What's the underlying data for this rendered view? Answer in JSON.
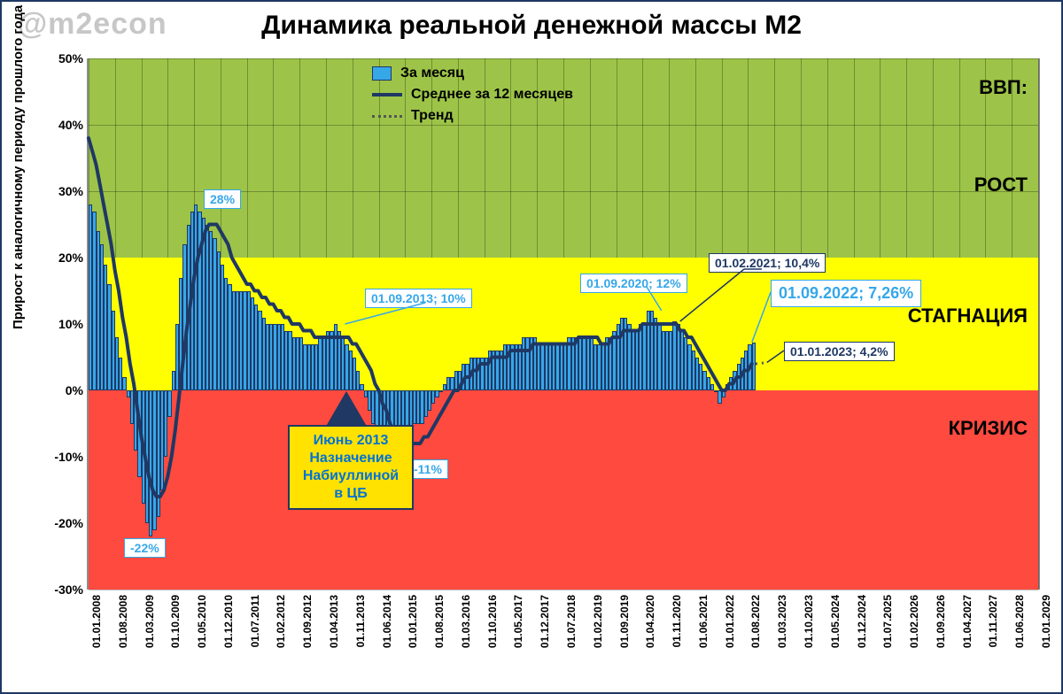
{
  "meta": {
    "watermark": "@m2econ",
    "title": "Динамика реальной денежной массы М2"
  },
  "axes": {
    "y": {
      "label": "Прирост к аналогичному периоду прошлого года",
      "min": -30,
      "max": 50,
      "step": 10,
      "tick_labels": [
        "-30%",
        "-20%",
        "-10%",
        "0%",
        "10%",
        "20%",
        "30%",
        "40%",
        "50%"
      ],
      "tick_fontsize": 14
    },
    "x": {
      "labels": [
        "01.01.2008",
        "01.08.2008",
        "01.03.2009",
        "01.10.2009",
        "01.05.2010",
        "01.12.2010",
        "01.07.2011",
        "01.02.2012",
        "01.09.2012",
        "01.04.2013",
        "01.11.2013",
        "01.06.2014",
        "01.01.2015",
        "01.08.2015",
        "01.03.2016",
        "01.10.2016",
        "01.05.2017",
        "01.12.2017",
        "01.07.2018",
        "01.02.2019",
        "01.09.2019",
        "01.04.2020",
        "01.11.2020",
        "01.06.2021",
        "01.01.2022",
        "01.08.2022",
        "01.03.2023",
        "01.10.2023",
        "01.05.2024",
        "01.12.2024",
        "01.07.2025",
        "01.02.2026",
        "01.09.2026",
        "01.04.2027",
        "01.11.2027",
        "01.06.2028",
        "01.01.2029"
      ],
      "tick_fontsize": 12
    }
  },
  "zones": {
    "green": {
      "color": "#9dc448",
      "from": 20,
      "to": 50
    },
    "yellow": {
      "color": "#ffff00",
      "from": 0,
      "to": 20
    },
    "red": {
      "color": "#ff4a3f",
      "from": -30,
      "to": 0
    },
    "labels": {
      "header": "ВВП:",
      "growth": "РОСТ",
      "stagnation": "СТАГНАЦИЯ",
      "crisis": "КРИЗИС"
    }
  },
  "legend": {
    "bar": "За месяц",
    "line": "Среднее за 12 месяцев",
    "trend": "Тренд"
  },
  "colors": {
    "bar_fill": "#36a7e9",
    "bar_border": "#1f3864",
    "line": "#1f3864",
    "trend": "#555555",
    "frame": "#1f3864",
    "grid": "rgba(0,0,0,0.28)"
  },
  "line_width": 4,
  "series": {
    "start_year": 2008.0,
    "end_year_axis": 2029.0,
    "last_bar_year": 2022.67,
    "monthly": [
      28,
      27,
      24,
      22,
      19,
      16,
      12,
      8,
      5,
      2,
      -1,
      -5,
      -9,
      -13,
      -17,
      -20,
      -22,
      -21,
      -19,
      -15,
      -10,
      -4,
      3,
      10,
      17,
      22,
      25,
      27,
      28,
      27,
      26,
      25,
      24,
      23,
      21,
      19,
      17,
      16,
      15,
      15,
      15,
      15,
      15,
      14,
      13,
      12,
      11,
      10,
      10,
      10,
      10,
      10,
      9,
      9,
      8,
      8,
      8,
      7,
      7,
      7,
      7,
      8,
      8,
      9,
      9,
      10,
      9,
      8,
      7,
      6,
      5,
      3,
      1,
      -1,
      -3,
      -5,
      -7,
      -9,
      -10,
      -11,
      -11,
      -10,
      -9,
      -8,
      -7,
      -6,
      -5,
      -5,
      -5,
      -4,
      -3,
      -2,
      -1,
      0,
      1,
      2,
      2,
      3,
      3,
      4,
      4,
      5,
      5,
      5,
      5,
      5,
      6,
      6,
      6,
      6,
      7,
      7,
      7,
      7,
      7,
      8,
      8,
      8,
      8,
      7,
      7,
      7,
      7,
      7,
      7,
      7,
      7,
      8,
      8,
      8,
      8,
      8,
      8,
      8,
      7,
      7,
      7,
      8,
      8,
      9,
      10,
      11,
      11,
      10,
      9,
      9,
      10,
      10,
      12,
      12,
      11,
      10,
      9,
      9,
      9,
      10.4,
      10,
      9,
      8,
      7,
      6,
      5,
      4,
      3,
      2,
      1,
      0,
      -2,
      -1,
      1,
      2,
      3,
      4,
      5,
      6,
      7,
      7.26
    ],
    "avg12": [
      38,
      36,
      34,
      31,
      28,
      25,
      22,
      18,
      15,
      11,
      8,
      4,
      1,
      -3,
      -7,
      -10,
      -13,
      -15,
      -16,
      -16,
      -15,
      -13,
      -10,
      -6,
      -1,
      4,
      9,
      13,
      17,
      20,
      22,
      24,
      25,
      25,
      25,
      24,
      23,
      22,
      20,
      19,
      18,
      17,
      16,
      16,
      15,
      15,
      14,
      14,
      13,
      13,
      12,
      12,
      11,
      11,
      10,
      10,
      10,
      9,
      9,
      9,
      8,
      8,
      8,
      8,
      8,
      8,
      8,
      8,
      8,
      8,
      7,
      7,
      6,
      5,
      4,
      3,
      1,
      0,
      -2,
      -3,
      -5,
      -6,
      -7,
      -8,
      -8,
      -8,
      -8,
      -8,
      -8,
      -7,
      -7,
      -6,
      -5,
      -4,
      -3,
      -2,
      -1,
      0,
      0,
      1,
      2,
      2,
      3,
      3,
      4,
      4,
      4,
      5,
      5,
      5,
      5,
      5,
      6,
      6,
      6,
      6,
      6,
      6,
      7,
      7,
      7,
      7,
      7,
      7,
      7,
      7,
      7,
      7,
      7,
      7,
      8,
      8,
      8,
      8,
      8,
      8,
      7,
      7,
      7,
      8,
      8,
      8,
      9,
      9,
      9,
      9,
      9,
      10,
      10,
      10,
      10,
      10,
      10,
      10,
      10,
      10,
      10,
      9,
      9,
      8,
      8,
      7,
      6,
      5,
      4,
      3,
      2,
      1,
      0,
      0,
      1,
      1,
      2,
      2,
      3,
      3,
      4
    ],
    "trend_future": {
      "from_year": 2022.75,
      "to_year": 2023.0,
      "from_val": 4.0,
      "to_val": 4.2
    }
  },
  "callouts": {
    "peak_2010": {
      "text": "28%",
      "style": "sky"
    },
    "low_2009": {
      "text": "-22%",
      "style": "sky"
    },
    "low_2015": {
      "text": "-11%",
      "style": "sky"
    },
    "pt_2013": {
      "text": "01.09.2013; 10%",
      "style": "sky"
    },
    "pt_2020": {
      "text": "01.09.2020; 12%",
      "style": "sky"
    },
    "pt_2021": {
      "text": "01.02.2021; 10,4%",
      "style": "navy"
    },
    "pt_2022": {
      "text": "01.09.2022; 7,26%",
      "style": "sky big"
    },
    "pt_2023": {
      "text": "01.01.2023; 4,2%",
      "style": "navy"
    },
    "event_box": {
      "lines": [
        "Июнь 2013",
        "Назначение",
        "Набиуллиной",
        "в ЦБ"
      ]
    }
  }
}
